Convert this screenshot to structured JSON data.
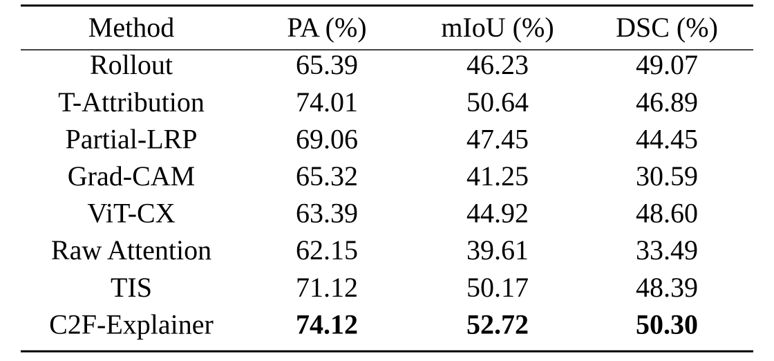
{
  "table": {
    "header": [
      "Method",
      "PA (%)",
      "mIoU (%)",
      "DSC (%)"
    ],
    "rows": [
      [
        "Rollout",
        "65.39",
        "46.23",
        "49.07"
      ],
      [
        "T-Attribution",
        "74.01",
        "50.64",
        "46.89"
      ],
      [
        "Partial-LRP",
        "69.06",
        "47.45",
        "44.45"
      ],
      [
        "Grad-CAM",
        "65.32",
        "41.25",
        "30.59"
      ],
      [
        "ViT-CX",
        "63.39",
        "44.92",
        "48.60"
      ],
      [
        "Raw Attention",
        "62.15",
        "39.61",
        "33.49"
      ],
      [
        "TIS",
        "71.12",
        "50.17",
        "48.39"
      ],
      [
        "C2F-Explainer",
        "74.12",
        "52.72",
        "50.30"
      ]
    ]
  }
}
